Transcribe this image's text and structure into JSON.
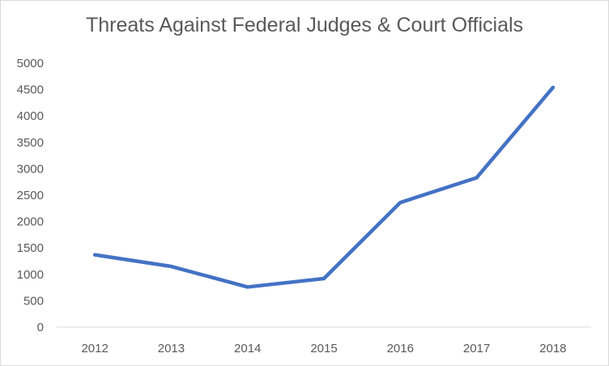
{
  "chart_data": {
    "type": "line",
    "title": "Threats Against Federal Judges & Court Officials",
    "xlabel": "",
    "ylabel": "",
    "categories": [
      "2012",
      "2013",
      "2014",
      "2015",
      "2016",
      "2017",
      "2018"
    ],
    "series": [
      {
        "values": [
          1370,
          1150,
          760,
          920,
          2360,
          2830,
          4540
        ]
      }
    ],
    "ylim": [
      0,
      5000
    ],
    "yticks": [
      "0",
      "500",
      "1000",
      "1500",
      "2000",
      "2500",
      "3000",
      "3500",
      "4000",
      "4500",
      "5000"
    ],
    "grid": false,
    "legend": "none",
    "colors": {
      "line": "#4472c4",
      "axis": "#d9d9d9",
      "text": "#595959"
    }
  }
}
